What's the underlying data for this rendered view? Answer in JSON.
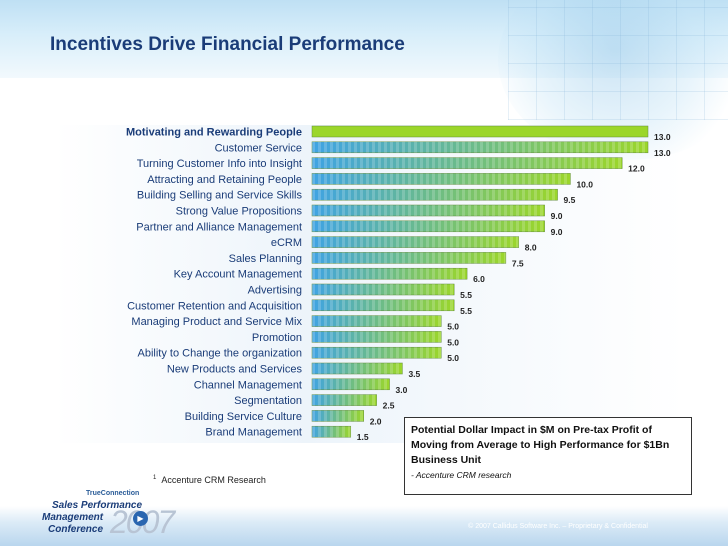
{
  "title": "Incentives Drive Financial Performance",
  "chart_data": {
    "type": "bar",
    "orientation": "horizontal",
    "categories": [
      "Motivating and Rewarding People",
      "Customer Service",
      "Turning Customer Info into Insight",
      "Attracting and Retaining People",
      "Building Selling and Service Skills",
      "Strong Value Propositions",
      "Partner and Alliance Management",
      "eCRM",
      "Sales Planning",
      "Key Account Management",
      "Advertising",
      "Customer Retention and Acquisition",
      "Managing Product and Service Mix",
      "Promotion",
      "Ability to Change the organization",
      "New Products and Services",
      "Channel Management",
      "Segmentation",
      "Building Service Culture",
      "Brand Management"
    ],
    "values": [
      13.0,
      13.0,
      12.0,
      10.0,
      9.5,
      9.0,
      9.0,
      8.0,
      7.5,
      6.0,
      5.5,
      5.5,
      5.0,
      5.0,
      5.0,
      3.5,
      3.0,
      2.5,
      2.0,
      1.5
    ],
    "value_labels": [
      "13.0",
      "13.0",
      "12.0",
      "10.0",
      "9.5",
      "9.0",
      "9.0",
      "8.0",
      "7.5",
      "6.0",
      "5.5",
      "5.5",
      "5.0",
      "5.0",
      "5.0",
      "3.5",
      "3.0",
      "2.5",
      "2.0",
      "1.5"
    ],
    "xlim": [
      0,
      13.0
    ],
    "highlighted_category": "Motivating and Rewarding People",
    "colors": {
      "highlight": "#9bd62a",
      "bar_start": "#3fa3e3",
      "bar_end": "#9bd62a"
    }
  },
  "infobox": {
    "text": "Potential Dollar Impact in $M on Pre-tax Profit of Moving from Average to High Performance for $1Bn Business Unit",
    "source": "- Accenture CRM research"
  },
  "footnote": {
    "marker": "1",
    "text": "Accenture CRM Research"
  },
  "logo": {
    "brand": "TrueConnection",
    "line1": "Sales Performance",
    "line2": "Management",
    "line3": "Conference",
    "year": "2007"
  },
  "copyright": "© 2007 Callidus Software Inc. – Proprietary & Confidential"
}
